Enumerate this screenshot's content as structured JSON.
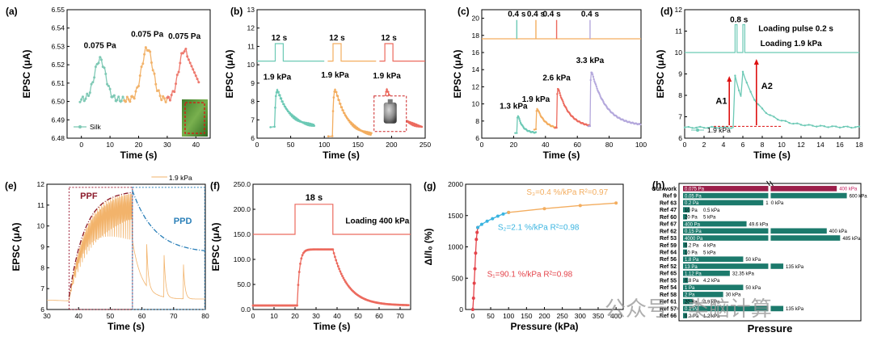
{
  "watermark": "公众号 · 类脑计算",
  "panels": {
    "a": {
      "letter": "(a)",
      "ylabel": "EPSC (μA)",
      "xlabel": "Time (s)",
      "legend": "Silk"
    },
    "b": {
      "letter": "(b)",
      "ylabel": "EPSC (μA)",
      "xlabel": "Time (s)"
    },
    "c": {
      "letter": "(c)",
      "ylabel": "EPSC (μA)",
      "xlabel": "Time (s)"
    },
    "d": {
      "letter": "(d)",
      "ylabel": "EPSC (μA)",
      "xlabel": "Time (s)",
      "legend": "1.9 kPa",
      "note1": "Loading pulse 0.2 s",
      "note2": "Loading 1.9 kPa",
      "pulse": "0.8 s",
      "a1": "A1",
      "a2": "A2"
    },
    "e": {
      "letter": "(e)",
      "ylabel": "EPSC (μA)",
      "xlabel": "Time (s)",
      "legend": "1.9 kPa",
      "ppf": "PPF",
      "ppd": "PPD"
    },
    "f": {
      "letter": "(f)",
      "ylabel": "EPSC (μA)",
      "xlabel": "Time (s)",
      "pulse": "18 s",
      "note": "Loading 400 kPa"
    },
    "g": {
      "letter": "(g)",
      "ylabel": "ΔI/I₀ (%)",
      "xlabel": "Pressure (kPa)",
      "s1": "S₁=90.1 %/kPa  R²=0.98",
      "s2": "S₂=2.1 %/kPa  R²=0.98",
      "s3": "S₃=0.4 %/kPa  R²=0.97"
    },
    "h": {
      "letter": "(h)",
      "xlabel": "Pressure"
    }
  },
  "chart_data": [
    {
      "panel": "a",
      "type": "line",
      "xlim": [
        -5,
        45
      ],
      "ylim": [
        6.48,
        6.55
      ],
      "xticks": [
        0,
        10,
        20,
        30,
        40
      ],
      "yticks": [
        6.48,
        6.49,
        6.5,
        6.51,
        6.52,
        6.53,
        6.54,
        6.55
      ],
      "peaks": [
        {
          "t": 6.5,
          "v": 6.523,
          "label": "0.075 Pa"
        },
        {
          "t": 23,
          "v": 6.529,
          "label": "0.075 Pa"
        },
        {
          "t": 36,
          "v": 6.528,
          "label": "0.075 Pa"
        }
      ],
      "baseline": 6.501
    },
    {
      "panel": "b",
      "type": "line",
      "xlim": [
        0,
        250
      ],
      "ylim": [
        6,
        13
      ],
      "xticks": [
        0,
        50,
        100,
        150,
        200,
        250
      ],
      "yticks": [
        6,
        7,
        8,
        9,
        10,
        11,
        12,
        13
      ],
      "pulses": [
        {
          "start": 27,
          "end": 39,
          "label": "12 s"
        },
        {
          "start": 113,
          "end": 125,
          "label": "12 s"
        },
        {
          "start": 190,
          "end": 202,
          "label": "12 s"
        }
      ],
      "pulse_low": 10.2,
      "pulse_high": 11.15,
      "responses": [
        {
          "t0": 22,
          "peak": 8.85,
          "base": 6.6,
          "end": 85,
          "label": "1.9 kPa"
        },
        {
          "t0": 108,
          "peak": 8.95,
          "base": 6.1,
          "end": 170,
          "label": "1.9 kPa"
        },
        {
          "t0": 185,
          "peak": 8.9,
          "base": 6.5,
          "end": 245,
          "label": "1.9 kPa"
        }
      ]
    },
    {
      "panel": "c",
      "type": "line",
      "xlim": [
        0,
        100
      ],
      "ylim": [
        6,
        21
      ],
      "xticks": [
        0,
        20,
        40,
        60,
        80,
        100
      ],
      "yticks": [
        6,
        8,
        10,
        12,
        14,
        16,
        18,
        20
      ],
      "pulses": [
        {
          "t": 22,
          "label": "0.4 s"
        },
        {
          "t": 34,
          "label": "0.4 s"
        },
        {
          "t": 47,
          "label": "0.4 s"
        },
        {
          "t": 68,
          "label": "0.4 s"
        }
      ],
      "pulse_low": 17.6,
      "pulse_high": 19.8,
      "responses": [
        {
          "t0": 22,
          "peak": 8.9,
          "base": 6.6,
          "end": 34,
          "label": "1.3 kPa"
        },
        {
          "t0": 34,
          "peak": 9.7,
          "base": 7.0,
          "end": 47,
          "label": "1.9 kPa"
        },
        {
          "t0": 47,
          "peak": 12.2,
          "base": 7.2,
          "end": 68,
          "label": "2.6 kPa"
        },
        {
          "t0": 68,
          "peak": 14.2,
          "base": 7.4,
          "end": 100,
          "label": "3.3 kPa"
        }
      ]
    },
    {
      "panel": "d",
      "type": "line",
      "xlim": [
        0,
        18
      ],
      "ylim": [
        6,
        12
      ],
      "xticks": [
        0,
        2,
        4,
        6,
        8,
        10,
        12,
        14,
        16,
        18
      ],
      "yticks": [
        6,
        7,
        8,
        9,
        10,
        11,
        12
      ],
      "pulses": [
        5.2,
        6.0
      ],
      "pulse_low": 10.0,
      "pulse_high": 11.3,
      "baseline": 6.5,
      "peak1": 8.9,
      "peak2": 9.7
    },
    {
      "panel": "e",
      "type": "line",
      "xlim": [
        30,
        80
      ],
      "ylim": [
        6,
        12
      ],
      "xticks": [
        30,
        40,
        50,
        60,
        70,
        80
      ],
      "yticks": [
        6,
        7,
        8,
        9,
        10,
        11,
        12
      ],
      "train_start": 37,
      "train_end": 57,
      "train_max": 11.7,
      "decay_peaks": [
        61.5,
        67,
        73
      ]
    },
    {
      "panel": "f",
      "type": "line",
      "xlim": [
        0,
        75
      ],
      "ylim": [
        0,
        250
      ],
      "xticks": [
        0,
        10,
        20,
        30,
        40,
        50,
        60,
        70
      ],
      "yticks": [
        0,
        50,
        100,
        150,
        200,
        250
      ],
      "ytick_labels": [
        "0.0",
        "50.0",
        "100.0",
        "150.0",
        "200.0",
        "250.0"
      ],
      "pulse": {
        "start": 20,
        "end": 38,
        "low": 150,
        "high": 210
      },
      "plateau": 120,
      "baseline": 8
    },
    {
      "panel": "g",
      "type": "scatter",
      "xlim": [
        -20,
        420
      ],
      "ylim": [
        0,
        2000
      ],
      "xticks": [
        0,
        50,
        100,
        150,
        200,
        250,
        300,
        350,
        400
      ],
      "yticks": [
        0,
        500,
        1000,
        1500,
        2000
      ],
      "series": [
        {
          "name": "S1",
          "x": [
            0,
            2,
            4,
            6,
            8,
            10,
            12,
            14
          ],
          "y": [
            0,
            180,
            420,
            650,
            900,
            1120,
            1230,
            1310
          ]
        },
        {
          "name": "S2",
          "x": [
            14,
            25,
            40,
            55,
            70,
            85,
            100
          ],
          "y": [
            1310,
            1360,
            1410,
            1450,
            1490,
            1525,
            1550
          ]
        },
        {
          "name": "S3",
          "x": [
            100,
            200,
            300,
            400
          ],
          "y": [
            1550,
            1610,
            1660,
            1700
          ]
        }
      ]
    },
    {
      "panel": "h",
      "type": "bar",
      "rows": [
        {
          "name": "Our work",
          "value": 4.6,
          "min": "0.075 Pa",
          "max": "400 kPa",
          "hl": true
        },
        {
          "name": "Ref 9",
          "value": 4.9,
          "min": "0.05 Pa",
          "max": "600 kPa"
        },
        {
          "name": "Ref 63",
          "value": 2.4,
          "min": "0.2 Pa",
          "max": "100 kPa"
        },
        {
          "name": "Ref 47",
          "value": 0.2,
          "min": "10 Pa",
          "max": "0.5 kPa"
        },
        {
          "name": "Ref 60",
          "value": 0.12,
          "min": "20 Pa",
          "max": "5 kPa"
        },
        {
          "name": "Ref 67",
          "value": 1.9,
          "min": "400 Pa",
          "max": "49.6 kPa"
        },
        {
          "name": "Ref 62",
          "value": 4.3,
          "min": "0.15 Pa",
          "max": "400 kPa"
        },
        {
          "name": "Ref 53",
          "value": 4.7,
          "min": "4000 Pa",
          "max": "485 kPa"
        },
        {
          "name": "Ref 59",
          "value": 0.12,
          "min": "0.2 Pa",
          "max": "4 kPa"
        },
        {
          "name": "Ref 64",
          "value": 0.12,
          "min": "10 Pa",
          "max": "5 kPa"
        },
        {
          "name": "Ref 56",
          "value": 1.8,
          "min": "1.8 Pa",
          "max": "50 kPa"
        },
        {
          "name": "Ref 52",
          "value": 3.0,
          "min": "13 Pa",
          "max": "135 kPa"
        },
        {
          "name": "Ref 65",
          "value": 1.4,
          "min": "1.12 Pa",
          "max": "32.35 kPa"
        },
        {
          "name": "Ref 55",
          "value": 0.15,
          "min": "0.8 Pa",
          "max": "4.2 kPa"
        },
        {
          "name": "Ref 54",
          "value": 1.8,
          "min": "1 Pa",
          "max": "50 kPa"
        },
        {
          "name": "Ref 58",
          "value": 1.2,
          "min": "2 Pa",
          "max": "30 kPa"
        },
        {
          "name": "Ref 61",
          "value": 0.3,
          "min": "20 Pa",
          "max": "4.9 kPa"
        },
        {
          "name": "Ref 57",
          "value": 3.0,
          "min": "0.1 Pa",
          "max": "135 kPa"
        },
        {
          "name": "Ref 66",
          "value": 0.12,
          "min": "0.2 Pa",
          "max": "1.2 kPa"
        }
      ]
    }
  ]
}
